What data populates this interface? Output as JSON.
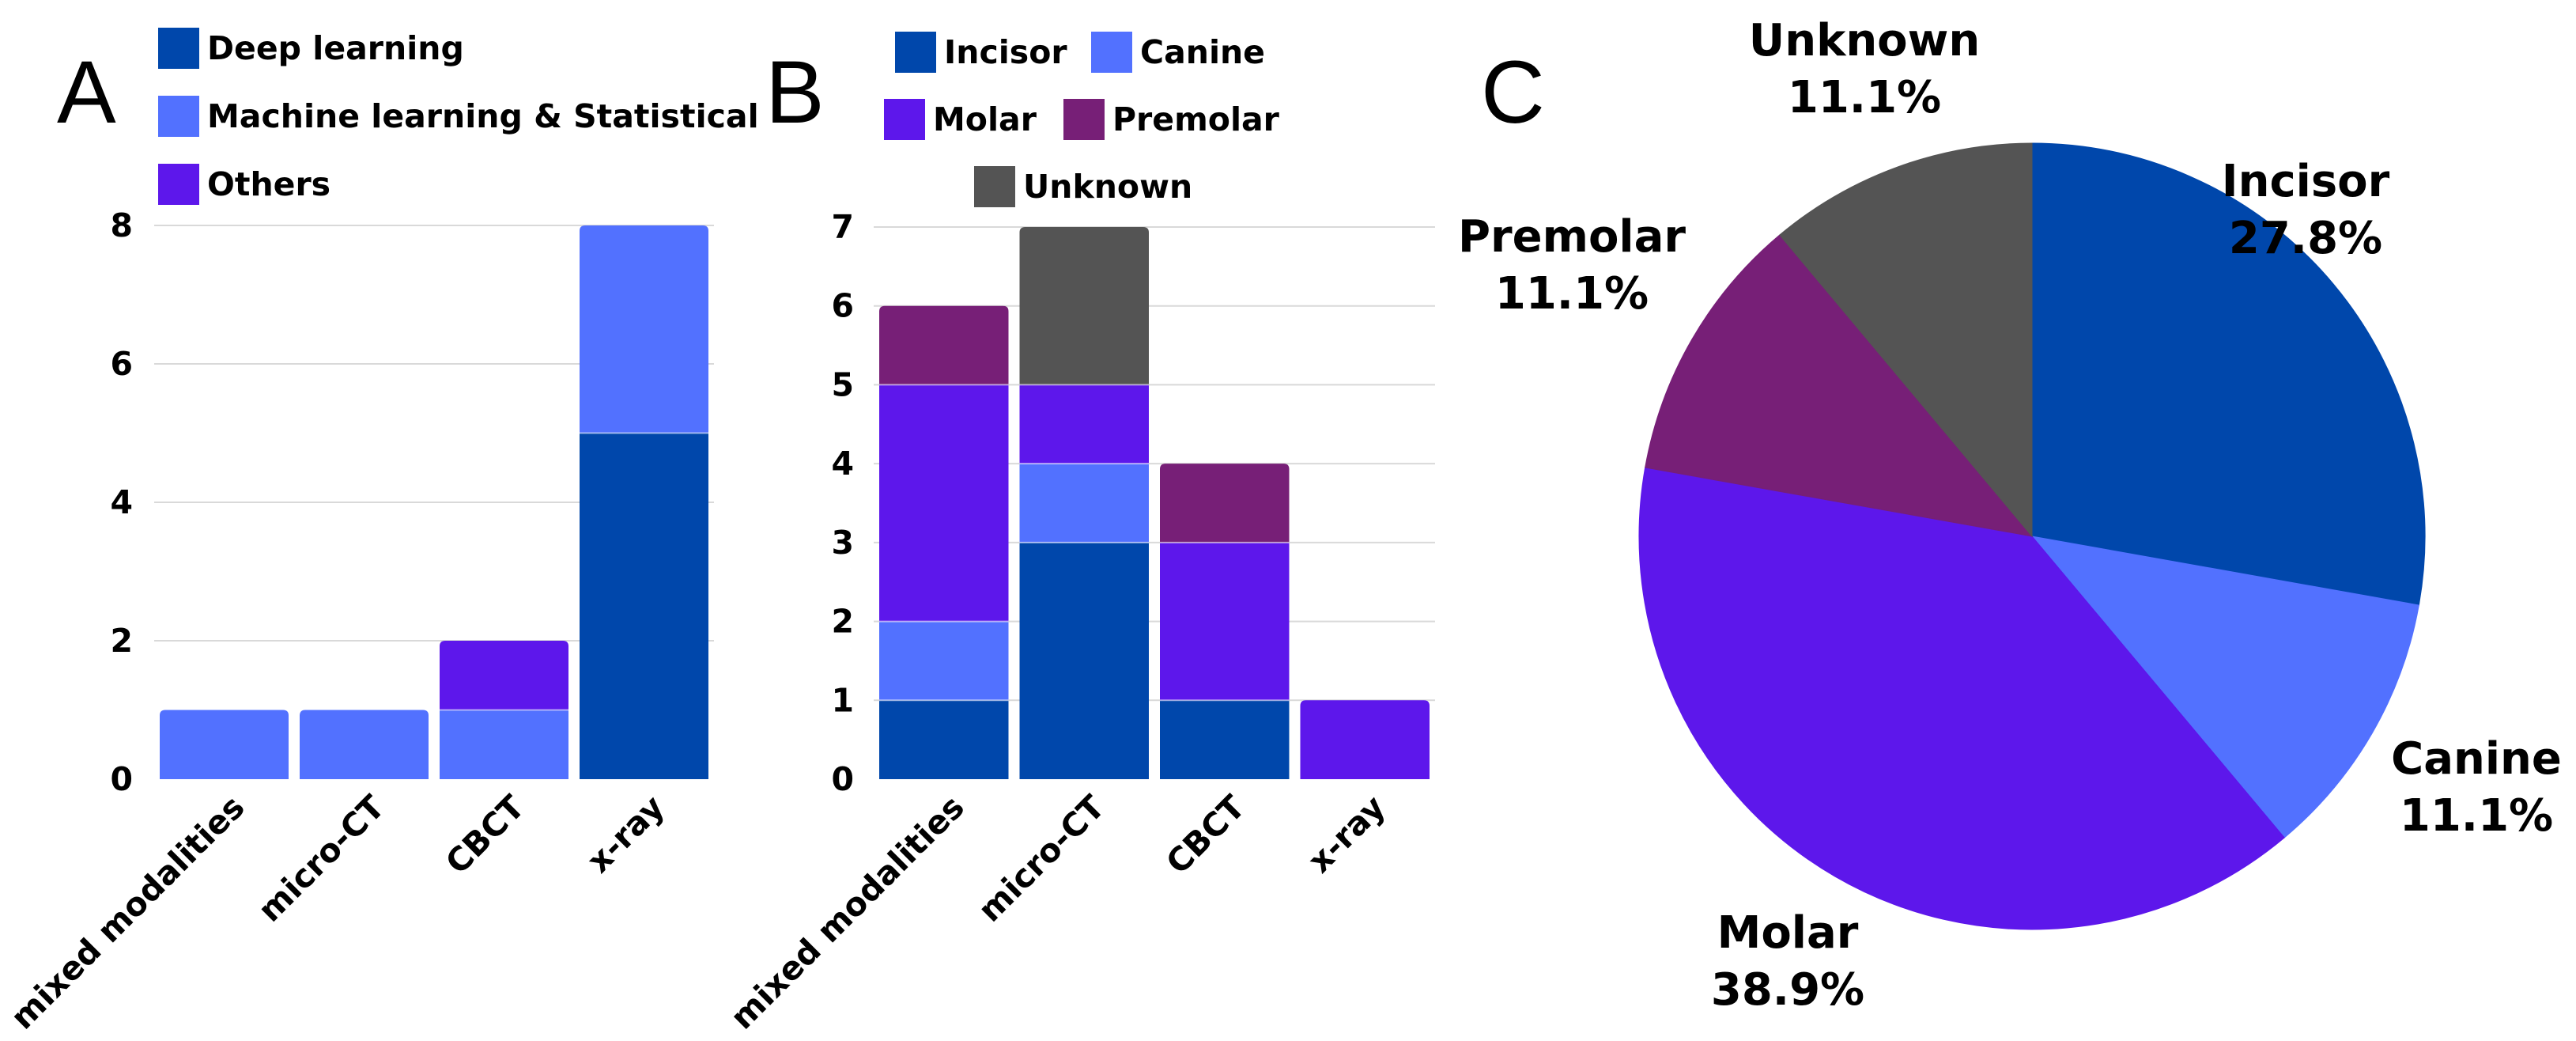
{
  "colors": {
    "incisor": "#0047ab",
    "canine": "#5271ff",
    "molar": "#5d17eb",
    "premolar": "#771f77",
    "unknown": "#545454",
    "grid": "#d9d9d9"
  },
  "panels": {
    "a": "A",
    "b": "B",
    "c": "C"
  },
  "chart_data": [
    {
      "type": "bar",
      "stacked": true,
      "panel": "A",
      "categories": [
        "mixed modalities",
        "micro-CT",
        "CBCT",
        "x-ray"
      ],
      "series": [
        {
          "name": "Deep learning",
          "color": "#0047ab",
          "values": [
            0,
            0,
            0,
            5
          ]
        },
        {
          "name": "Machine learning & Statistical",
          "color": "#5271ff",
          "values": [
            1,
            1,
            1,
            3
          ]
        },
        {
          "name": "Others",
          "color": "#5d17eb",
          "values": [
            0,
            0,
            1,
            0
          ]
        }
      ],
      "yticks": [
        "0",
        "2",
        "4",
        "6",
        "8"
      ],
      "ylim": [
        0,
        8
      ],
      "grid": true,
      "legend": "top"
    },
    {
      "type": "bar",
      "stacked": true,
      "panel": "B",
      "categories": [
        "mixed modalities",
        "micro-CT",
        "CBCT",
        "x-ray"
      ],
      "series": [
        {
          "name": "Incisor",
          "color": "#0047ab",
          "values": [
            1,
            3,
            1,
            0
          ]
        },
        {
          "name": "Canine",
          "color": "#5271ff",
          "values": [
            1,
            1,
            0,
            0
          ]
        },
        {
          "name": "Molar",
          "color": "#5d17eb",
          "values": [
            3,
            1,
            2,
            1
          ]
        },
        {
          "name": "Premolar",
          "color": "#771f77",
          "values": [
            1,
            0,
            1,
            0
          ]
        },
        {
          "name": "Unknown",
          "color": "#545454",
          "values": [
            0,
            2,
            0,
            0
          ]
        }
      ],
      "yticks": [
        "0",
        "1",
        "2",
        "3",
        "4",
        "5",
        "6",
        "7"
      ],
      "ylim": [
        0,
        7
      ],
      "grid": true,
      "legend": "top"
    },
    {
      "type": "pie",
      "panel": "C",
      "slices": [
        {
          "name": "Incisor",
          "value": 27.8,
          "label": "27.8%",
          "color": "#0047ab"
        },
        {
          "name": "Canine",
          "value": 11.1,
          "label": "11.1%",
          "color": "#5271ff"
        },
        {
          "name": "Molar",
          "value": 38.9,
          "label": "38.9%",
          "color": "#5d17eb"
        },
        {
          "name": "Premolar",
          "value": 11.1,
          "label": "11.1%",
          "color": "#771f77"
        },
        {
          "name": "Unknown",
          "value": 11.1,
          "label": "11.1%",
          "color": "#545454"
        }
      ]
    }
  ]
}
